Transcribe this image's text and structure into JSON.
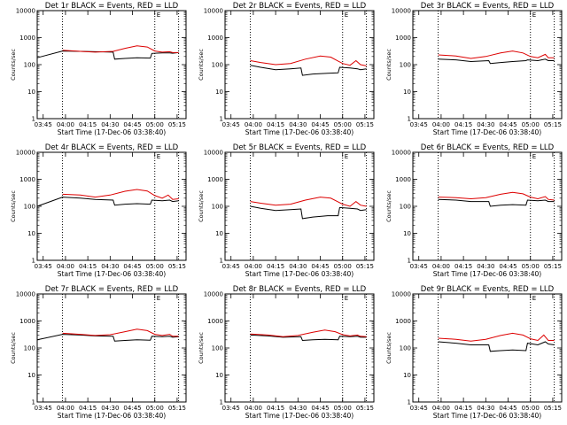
{
  "chart_data": [
    {
      "type": "line",
      "title": "Det 1r BLACK = Events, RED = LLD",
      "xlabel": "Start Time (17-Dec-06 03:38:40)",
      "ylabel": "Counts/sec",
      "yscale": "log",
      "ylim": [
        1,
        10000
      ],
      "yticks": [
        "1",
        "10",
        "100",
        "1000",
        "10000"
      ],
      "xlim": [
        "03:41",
        "05:21"
      ],
      "xticks": [
        "03:45",
        "04:00",
        "04:15",
        "04:30",
        "04:45",
        "05:00",
        "05:15"
      ],
      "vlines_dotted": [
        "03:58",
        "05:00",
        "05:16"
      ],
      "corner_marker": "E",
      "series": [
        {
          "color": "#000000",
          "x": [
            "03:41",
            "03:58",
            "04:10",
            "04:20",
            "04:32",
            "04:33",
            "04:40",
            "04:48",
            "04:57",
            "04:58",
            "05:05",
            "05:10",
            "05:12",
            "05:16"
          ],
          "y": [
            180,
            320,
            310,
            300,
            290,
            160,
            170,
            180,
            175,
            260,
            270,
            270,
            265,
            280
          ]
        },
        {
          "color": "#dd0000",
          "x": [
            "03:58",
            "04:10",
            "04:20",
            "04:32",
            "04:40",
            "04:48",
            "04:55",
            "05:00",
            "05:05",
            "05:10",
            "05:12",
            "05:16"
          ],
          "y": [
            340,
            310,
            290,
            310,
            400,
            500,
            450,
            320,
            290,
            300,
            280,
            280
          ]
        }
      ]
    },
    {
      "type": "line",
      "title": "Det 2r BLACK = Events, RED = LLD",
      "xlabel": "Start Time (17-Dec-06 03:38:40)",
      "ylabel": "Counts/sec",
      "yscale": "log",
      "ylim": [
        1,
        10000
      ],
      "yticks": [
        "1",
        "10",
        "100",
        "1000",
        "10000"
      ],
      "xlim": [
        "03:41",
        "05:21"
      ],
      "xticks": [
        "03:45",
        "04:00",
        "04:15",
        "04:30",
        "04:45",
        "05:00",
        "05:15"
      ],
      "vlines_dotted": [
        "03:58",
        "05:00",
        "05:16"
      ],
      "corner_marker": "E",
      "series": [
        {
          "color": "#000000",
          "x": [
            "03:58",
            "04:05",
            "04:15",
            "04:25",
            "04:32",
            "04:33",
            "04:40",
            "04:50",
            "04:57",
            "04:58",
            "05:05",
            "05:10",
            "05:12",
            "05:16"
          ],
          "y": [
            95,
            80,
            65,
            70,
            75,
            40,
            45,
            48,
            50,
            80,
            75,
            70,
            65,
            70
          ]
        },
        {
          "color": "#dd0000",
          "x": [
            "03:58",
            "04:05",
            "04:15",
            "04:25",
            "04:35",
            "04:45",
            "04:52",
            "05:00",
            "05:05",
            "05:09",
            "05:12",
            "05:16"
          ],
          "y": [
            140,
            120,
            100,
            110,
            160,
            210,
            190,
            110,
            95,
            140,
            100,
            90
          ]
        }
      ]
    },
    {
      "type": "line",
      "title": "Det 3r BLACK = Events, RED = LLD",
      "xlabel": "Start Time (17-Dec-06 03:38:40)",
      "ylabel": "Counts/sec",
      "yscale": "log",
      "ylim": [
        1,
        10000
      ],
      "yticks": [
        "1",
        "10",
        "100",
        "1000",
        "10000"
      ],
      "xlim": [
        "03:41",
        "05:21"
      ],
      "xticks": [
        "03:45",
        "04:00",
        "04:15",
        "04:30",
        "04:45",
        "05:00",
        "05:15"
      ],
      "vlines_dotted": [
        "03:58",
        "05:00",
        "05:16"
      ],
      "corner_marker": "E",
      "series": [
        {
          "color": "#000000",
          "x": [
            "03:58",
            "04:10",
            "04:20",
            "04:32",
            "04:33",
            "04:40",
            "04:48",
            "04:57",
            "04:58",
            "05:05",
            "05:10",
            "05:12",
            "05:16"
          ],
          "y": [
            160,
            150,
            130,
            140,
            110,
            120,
            130,
            140,
            150,
            140,
            160,
            140,
            140
          ]
        },
        {
          "color": "#dd0000",
          "x": [
            "03:58",
            "04:10",
            "04:20",
            "04:30",
            "04:40",
            "04:48",
            "04:55",
            "05:00",
            "05:05",
            "05:10",
            "05:12",
            "05:16"
          ],
          "y": [
            230,
            210,
            170,
            200,
            270,
            320,
            270,
            200,
            180,
            240,
            180,
            180
          ]
        }
      ]
    },
    {
      "type": "line",
      "title": "Det 4r BLACK = Events, RED = LLD",
      "xlabel": "Start Time (17-Dec-06 03:38:40)",
      "ylabel": "Counts/sec",
      "yscale": "log",
      "ylim": [
        1,
        10000
      ],
      "yticks": [
        "1",
        "10",
        "100",
        "1000",
        "10000"
      ],
      "xlim": [
        "03:41",
        "05:21"
      ],
      "xticks": [
        "03:45",
        "04:00",
        "04:15",
        "04:30",
        "04:45",
        "05:00",
        "05:15"
      ],
      "vlines_dotted": [
        "03:58",
        "05:00",
        "05:16"
      ],
      "corner_marker": "E",
      "series": [
        {
          "color": "#000000",
          "x": [
            "03:41",
            "03:58",
            "04:10",
            "04:20",
            "04:32",
            "04:33",
            "04:40",
            "04:48",
            "04:57",
            "04:58",
            "05:05",
            "05:10",
            "05:12",
            "05:16"
          ],
          "y": [
            100,
            220,
            200,
            180,
            170,
            110,
            120,
            125,
            120,
            170,
            160,
            170,
            150,
            160
          ]
        },
        {
          "color": "#dd0000",
          "x": [
            "03:58",
            "04:10",
            "04:20",
            "04:30",
            "04:40",
            "04:48",
            "04:55",
            "05:00",
            "05:05",
            "05:09",
            "05:12",
            "05:16"
          ],
          "y": [
            280,
            260,
            220,
            260,
            360,
            420,
            370,
            250,
            200,
            260,
            180,
            190
          ]
        }
      ]
    },
    {
      "type": "line",
      "title": "Det 5r BLACK = Events, RED = LLD",
      "xlabel": "Start Time (17-Dec-06 03:38:40)",
      "ylabel": "Counts/sec",
      "yscale": "log",
      "ylim": [
        1,
        10000
      ],
      "yticks": [
        "1",
        "10",
        "100",
        "1000",
        "10000"
      ],
      "xlim": [
        "03:41",
        "05:21"
      ],
      "xticks": [
        "03:45",
        "04:00",
        "04:15",
        "04:30",
        "04:45",
        "05:00",
        "05:15"
      ],
      "vlines_dotted": [
        "03:58",
        "05:00",
        "05:16"
      ],
      "corner_marker": "E",
      "series": [
        {
          "color": "#000000",
          "x": [
            "03:58",
            "04:05",
            "04:15",
            "04:25",
            "04:32",
            "04:33",
            "04:40",
            "04:50",
            "04:57",
            "04:58",
            "05:05",
            "05:10",
            "05:12",
            "05:16"
          ],
          "y": [
            100,
            85,
            70,
            75,
            80,
            35,
            40,
            45,
            45,
            90,
            85,
            80,
            70,
            75
          ]
        },
        {
          "color": "#dd0000",
          "x": [
            "03:58",
            "04:05",
            "04:15",
            "04:25",
            "04:35",
            "04:45",
            "04:52",
            "05:00",
            "05:05",
            "05:09",
            "05:12",
            "05:16"
          ],
          "y": [
            150,
            130,
            110,
            120,
            170,
            220,
            200,
            120,
            100,
            150,
            110,
            100
          ]
        }
      ]
    },
    {
      "type": "line",
      "title": "Det 6r BLACK = Events, RED = LLD",
      "xlabel": "Start Time (17-Dec-06 03:38:40)",
      "ylabel": "Counts/sec",
      "yscale": "log",
      "ylim": [
        1,
        10000
      ],
      "yticks": [
        "1",
        "10",
        "100",
        "1000",
        "10000"
      ],
      "xlim": [
        "03:41",
        "05:21"
      ],
      "xticks": [
        "03:45",
        "04:00",
        "04:15",
        "04:30",
        "04:45",
        "05:00",
        "05:15"
      ],
      "vlines_dotted": [
        "03:58",
        "05:00",
        "05:16"
      ],
      "corner_marker": "E",
      "series": [
        {
          "color": "#000000",
          "x": [
            "03:58",
            "04:10",
            "04:20",
            "04:32",
            "04:33",
            "04:40",
            "04:48",
            "04:57",
            "04:58",
            "05:05",
            "05:10",
            "05:12",
            "05:16"
          ],
          "y": [
            180,
            170,
            150,
            150,
            100,
            110,
            115,
            110,
            170,
            160,
            170,
            150,
            150
          ]
        },
        {
          "color": "#dd0000",
          "x": [
            "03:58",
            "04:10",
            "04:20",
            "04:30",
            "04:40",
            "04:48",
            "04:55",
            "05:00",
            "05:05",
            "05:10",
            "05:12",
            "05:16"
          ],
          "y": [
            220,
            210,
            190,
            210,
            280,
            330,
            290,
            220,
            190,
            230,
            180,
            170
          ]
        }
      ]
    },
    {
      "type": "line",
      "title": "Det 7r BLACK = Events, RED = LLD",
      "xlabel": "Start Time (17-Dec-06 03:38:40)",
      "ylabel": "Counts/sec",
      "yscale": "log",
      "ylim": [
        1,
        10000
      ],
      "yticks": [
        "1",
        "10",
        "100",
        "1000",
        "10000"
      ],
      "xlim": [
        "03:41",
        "05:21"
      ],
      "xticks": [
        "03:45",
        "04:00",
        "04:15",
        "04:30",
        "04:45",
        "05:00",
        "05:15"
      ],
      "vlines_dotted": [
        "03:58",
        "05:00",
        "05:16"
      ],
      "corner_marker": "E",
      "series": [
        {
          "color": "#000000",
          "x": [
            "03:41",
            "03:58",
            "04:10",
            "04:20",
            "04:32",
            "04:33",
            "04:40",
            "04:48",
            "04:57",
            "04:58",
            "05:05",
            "05:10",
            "05:12",
            "05:16"
          ],
          "y": [
            200,
            320,
            300,
            280,
            270,
            180,
            190,
            200,
            195,
            270,
            260,
            270,
            250,
            260
          ]
        },
        {
          "color": "#dd0000",
          "x": [
            "03:58",
            "04:10",
            "04:20",
            "04:30",
            "04:40",
            "04:48",
            "04:55",
            "05:00",
            "05:05",
            "05:10",
            "05:12",
            "05:16"
          ],
          "y": [
            350,
            320,
            290,
            310,
            400,
            500,
            440,
            320,
            290,
            320,
            270,
            270
          ]
        }
      ]
    },
    {
      "type": "line",
      "title": "Det 8r BLACK = Events, RED = LLD",
      "xlabel": "Start Time (17-Dec-06 03:38:40)",
      "ylabel": "Counts/sec",
      "yscale": "log",
      "ylim": [
        1,
        10000
      ],
      "yticks": [
        "1",
        "10",
        "100",
        "1000",
        "10000"
      ],
      "xlim": [
        "03:41",
        "05:21"
      ],
      "xticks": [
        "03:45",
        "04:00",
        "04:15",
        "04:30",
        "04:45",
        "05:00",
        "05:15"
      ],
      "vlines_dotted": [
        "03:58",
        "05:00",
        "05:16"
      ],
      "corner_marker": "E",
      "series": [
        {
          "color": "#000000",
          "x": [
            "03:58",
            "04:10",
            "04:20",
            "04:32",
            "04:33",
            "04:40",
            "04:48",
            "04:57",
            "04:58",
            "05:05",
            "05:10",
            "05:12",
            "05:16"
          ],
          "y": [
            300,
            280,
            250,
            260,
            190,
            200,
            210,
            200,
            270,
            260,
            270,
            250,
            250
          ]
        },
        {
          "color": "#dd0000",
          "x": [
            "03:58",
            "04:10",
            "04:20",
            "04:30",
            "04:40",
            "04:48",
            "04:55",
            "05:00",
            "05:05",
            "05:10",
            "05:12",
            "05:16"
          ],
          "y": [
            330,
            300,
            260,
            290,
            380,
            460,
            400,
            310,
            280,
            300,
            270,
            260
          ]
        }
      ]
    },
    {
      "type": "line",
      "title": "Det 9r BLACK = Events, RED = LLD",
      "xlabel": "Start Time (17-Dec-06 03:38:40)",
      "ylabel": "Counts/sec",
      "yscale": "log",
      "ylim": [
        1,
        10000
      ],
      "yticks": [
        "1",
        "10",
        "100",
        "1000",
        "10000"
      ],
      "xlim": [
        "03:41",
        "05:21"
      ],
      "xticks": [
        "03:45",
        "04:00",
        "04:15",
        "04:30",
        "04:45",
        "05:00",
        "05:15"
      ],
      "vlines_dotted": [
        "03:58",
        "05:00",
        "05:16"
      ],
      "corner_marker": "E",
      "series": [
        {
          "color": "#000000",
          "x": [
            "03:58",
            "04:10",
            "04:20",
            "04:32",
            "04:33",
            "04:40",
            "04:48",
            "04:57",
            "04:58",
            "05:05",
            "05:10",
            "05:12",
            "05:16"
          ],
          "y": [
            170,
            150,
            130,
            130,
            75,
            80,
            85,
            80,
            150,
            130,
            170,
            140,
            130
          ]
        },
        {
          "color": "#dd0000",
          "x": [
            "03:58",
            "04:10",
            "04:20",
            "04:30",
            "04:40",
            "04:48",
            "04:55",
            "05:00",
            "05:05",
            "05:09",
            "05:12",
            "05:16"
          ],
          "y": [
            230,
            210,
            180,
            210,
            290,
            350,
            300,
            220,
            190,
            300,
            190,
            190
          ]
        }
      ]
    }
  ]
}
